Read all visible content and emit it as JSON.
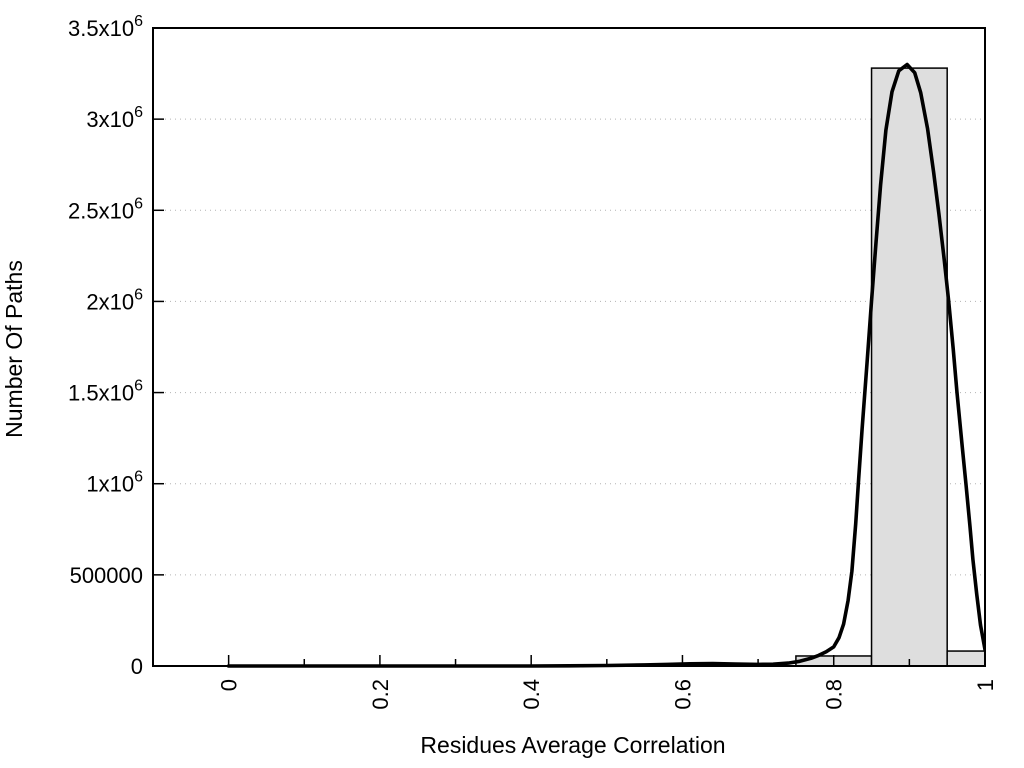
{
  "chart_data": {
    "type": "bar",
    "subtype": "histogram-with-fit-curve",
    "title": "",
    "xlabel": "Residues Average Correlation",
    "ylabel": "Number Of Paths",
    "xlim": [
      -0.1,
      1.0
    ],
    "ylim": [
      0,
      3500000
    ],
    "grid": "horizontal-dotted",
    "legend": "none",
    "colors": {
      "axis": "#000000",
      "grid": "#b3b3b3",
      "bar_fill": "#dedede",
      "bar_border": "#000000",
      "curve": "#000000",
      "background": "#ffffff"
    },
    "bars": {
      "binwidth": 0.1,
      "fill": "#dedede",
      "border": "#000000",
      "bins": [
        {
          "x0": 0.75,
          "x1": 0.85,
          "center": 0.8,
          "count": 55000
        },
        {
          "x0": 0.85,
          "x1": 0.95,
          "center": 0.9,
          "count": 3280000
        },
        {
          "x0": 0.95,
          "x1": 1.0,
          "center": 1.0,
          "count": 82000
        }
      ]
    },
    "curve": {
      "name": "fit-curve",
      "color": "#000000",
      "width": 3.6,
      "peak": {
        "x": 0.897,
        "y": 3300000
      },
      "points": [
        [
          0.0,
          0
        ],
        [
          0.05,
          0
        ],
        [
          0.1,
          0
        ],
        [
          0.15,
          0
        ],
        [
          0.2,
          0
        ],
        [
          0.25,
          0
        ],
        [
          0.3,
          0
        ],
        [
          0.35,
          0
        ],
        [
          0.4,
          0
        ],
        [
          0.45,
          1000
        ],
        [
          0.5,
          2500
        ],
        [
          0.55,
          6000
        ],
        [
          0.58,
          9000
        ],
        [
          0.61,
          12000
        ],
        [
          0.64,
          13500
        ],
        [
          0.67,
          11000
        ],
        [
          0.7,
          9000
        ],
        [
          0.72,
          10000
        ],
        [
          0.74,
          16000
        ],
        [
          0.755,
          26000
        ],
        [
          0.77,
          42000
        ],
        [
          0.78,
          58000
        ],
        [
          0.79,
          78000
        ],
        [
          0.8,
          105000
        ],
        [
          0.807,
          155000
        ],
        [
          0.813,
          230000
        ],
        [
          0.819,
          360000
        ],
        [
          0.824,
          520000
        ],
        [
          0.829,
          780000
        ],
        [
          0.833,
          1030000
        ],
        [
          0.8375,
          1300000
        ],
        [
          0.844,
          1660000
        ],
        [
          0.85,
          2000000
        ],
        [
          0.856,
          2330000
        ],
        [
          0.862,
          2640000
        ],
        [
          0.869,
          2940000
        ],
        [
          0.877,
          3150000
        ],
        [
          0.886,
          3265000
        ],
        [
          0.897,
          3300000
        ],
        [
          0.907,
          3255000
        ],
        [
          0.915,
          3145000
        ],
        [
          0.924,
          2950000
        ],
        [
          0.932,
          2710000
        ],
        [
          0.939,
          2480000
        ],
        [
          0.946,
          2230000
        ],
        [
          0.952,
          2000000
        ],
        [
          0.958,
          1740000
        ],
        [
          0.963,
          1500000
        ],
        [
          0.97,
          1200000
        ],
        [
          0.975,
          990000
        ],
        [
          0.98,
          770000
        ],
        [
          0.984,
          585000
        ],
        [
          0.989,
          395000
        ],
        [
          0.994,
          225000
        ],
        [
          1.0,
          90000
        ]
      ]
    },
    "x_ticks": {
      "major": [
        {
          "v": 0,
          "label": "0"
        },
        {
          "v": 0.2,
          "label": "0.2"
        },
        {
          "v": 0.4,
          "label": "0.4"
        },
        {
          "v": 0.6,
          "label": "0.6"
        },
        {
          "v": 0.8,
          "label": "0.8"
        },
        {
          "v": 1.0,
          "label": "1"
        }
      ],
      "minor": [
        0.1,
        0.3,
        0.5,
        0.7,
        0.9
      ]
    },
    "y_ticks": [
      {
        "v": 0,
        "base": "0",
        "exp": ""
      },
      {
        "v": 500000,
        "base": "500000",
        "exp": ""
      },
      {
        "v": 1000000,
        "base": "1x10",
        "exp": "6"
      },
      {
        "v": 1500000,
        "base": "1.5x10",
        "exp": "6"
      },
      {
        "v": 2000000,
        "base": "2x10",
        "exp": "6"
      },
      {
        "v": 2500000,
        "base": "2.5x10",
        "exp": "6"
      },
      {
        "v": 3000000,
        "base": "3x10",
        "exp": "6"
      },
      {
        "v": 3500000,
        "base": "3.5x10",
        "exp": "6"
      }
    ]
  }
}
